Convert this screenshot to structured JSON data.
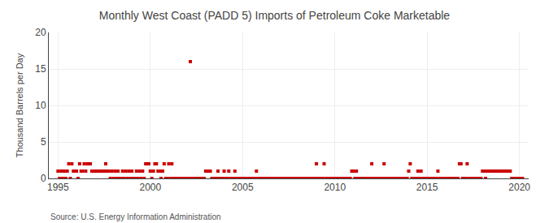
{
  "chart_data": {
    "type": "scatter",
    "title": "Monthly West Coast (PADD 5) Imports of Petroleum Coke Marketable",
    "ylabel": "Thousand Barrels per Day",
    "annotations": [
      "Source: U.S. Energy Information Administration"
    ],
    "color": "#cc0000",
    "marker": "square",
    "grid": true,
    "xlim": [
      1994.5,
      2020.5
    ],
    "xticks": [
      1995,
      2000,
      2005,
      2010,
      2015,
      2020
    ],
    "ylim": [
      0,
      20
    ],
    "yticks": [
      0,
      5,
      10,
      15,
      20
    ],
    "x": [
      1995.0,
      1995.083,
      1995.167,
      1995.25,
      1995.333,
      1995.417,
      1995.5,
      1995.583,
      1995.667,
      1995.75,
      1995.833,
      1995.917,
      1996.0,
      1996.083,
      1996.167,
      1996.25,
      1996.333,
      1996.417,
      1996.5,
      1996.583,
      1996.667,
      1996.75,
      1996.833,
      1996.917,
      1997.0,
      1997.083,
      1997.167,
      1997.25,
      1997.333,
      1997.417,
      1997.5,
      1997.583,
      1997.667,
      1997.75,
      1997.833,
      1997.917,
      1998.0,
      1998.083,
      1998.167,
      1998.25,
      1998.333,
      1998.417,
      1998.5,
      1998.583,
      1998.667,
      1998.75,
      1998.833,
      1998.917,
      1999.0,
      1999.083,
      1999.167,
      1999.25,
      1999.333,
      1999.417,
      1999.5,
      1999.583,
      1999.667,
      1999.75,
      1999.833,
      1999.917,
      2000.0,
      2000.083,
      2000.167,
      2000.25,
      2000.333,
      2000.417,
      2000.5,
      2000.583,
      2000.667,
      2000.75,
      2000.833,
      2000.917,
      2001.0,
      2001.083,
      2001.167,
      2001.25,
      2001.333,
      2001.417,
      2001.5,
      2001.583,
      2001.667,
      2001.75,
      2001.833,
      2001.917,
      2002.0,
      2002.083,
      2002.167,
      2002.25,
      2002.333,
      2002.417,
      2002.5,
      2002.583,
      2002.667,
      2002.75,
      2002.833,
      2002.917,
      2003.0,
      2003.083,
      2003.167,
      2003.25,
      2003.333,
      2003.417,
      2003.5,
      2003.583,
      2003.667,
      2003.75,
      2003.833,
      2003.917,
      2004.0,
      2004.083,
      2004.167,
      2004.25,
      2004.333,
      2004.417,
      2004.5,
      2004.583,
      2004.667,
      2004.75,
      2004.833,
      2004.917,
      2005.0,
      2005.083,
      2005.167,
      2005.25,
      2005.333,
      2005.417,
      2005.5,
      2005.583,
      2005.667,
      2005.75,
      2005.833,
      2005.917,
      2006.0,
      2006.083,
      2006.167,
      2006.25,
      2006.333,
      2006.417,
      2006.5,
      2006.583,
      2006.667,
      2006.75,
      2006.833,
      2006.917,
      2007.0,
      2007.083,
      2007.167,
      2007.25,
      2007.333,
      2007.417,
      2007.5,
      2007.583,
      2007.667,
      2007.75,
      2007.833,
      2007.917,
      2008.0,
      2008.083,
      2008.167,
      2008.25,
      2008.333,
      2008.417,
      2008.5,
      2008.583,
      2008.667,
      2008.75,
      2008.833,
      2008.917,
      2009.0,
      2009.083,
      2009.167,
      2009.25,
      2009.333,
      2009.417,
      2009.5,
      2009.583,
      2009.667,
      2009.75,
      2009.833,
      2009.917,
      2010.0,
      2010.083,
      2010.167,
      2010.25,
      2010.333,
      2010.417,
      2010.5,
      2010.583,
      2010.667,
      2010.75,
      2010.833,
      2010.917,
      2011.0,
      2011.083,
      2011.167,
      2011.25,
      2011.333,
      2011.417,
      2011.5,
      2011.583,
      2011.667,
      2011.75,
      2011.833,
      2011.917,
      2012.0,
      2012.083,
      2012.167,
      2012.25,
      2012.333,
      2012.417,
      2012.5,
      2012.583,
      2012.667,
      2012.75,
      2012.833,
      2012.917,
      2013.0,
      2013.083,
      2013.167,
      2013.25,
      2013.333,
      2013.417,
      2013.5,
      2013.583,
      2013.667,
      2013.75,
      2013.833,
      2013.917,
      2014.0,
      2014.083,
      2014.167,
      2014.25,
      2014.333,
      2014.417,
      2014.5,
      2014.583,
      2014.667,
      2014.75,
      2014.833,
      2014.917,
      2015.0,
      2015.083,
      2015.167,
      2015.25,
      2015.333,
      2015.417,
      2015.5,
      2015.583,
      2015.667,
      2015.75,
      2015.833,
      2015.917,
      2016.0,
      2016.083,
      2016.167,
      2016.25,
      2016.333,
      2016.417,
      2016.5,
      2016.583,
      2016.667,
      2016.75,
      2016.833,
      2016.917,
      2017.0,
      2017.083,
      2017.167,
      2017.25,
      2017.333,
      2017.417,
      2017.5,
      2017.583,
      2017.667,
      2017.75,
      2017.833,
      2017.917,
      2018.0,
      2018.083,
      2018.167,
      2018.25,
      2018.333,
      2018.417,
      2018.5,
      2018.583,
      2018.667,
      2018.75,
      2018.833,
      2018.917,
      2019.0,
      2019.083,
      2019.167,
      2019.25,
      2019.333,
      2019.417,
      2019.5,
      2019.583,
      2019.667,
      2019.75,
      2019.833,
      2019.917,
      2020.0,
      2020.083,
      2020.167
    ],
    "values": [
      1.0,
      0.0,
      1.0,
      0.0,
      1.0,
      0.0,
      1.0,
      2.0,
      0.0,
      2.0,
      1.0,
      1.0,
      1.0,
      0.0,
      2.0,
      1.0,
      1.0,
      2.0,
      1.0,
      2.0,
      2.0,
      2.0,
      1.0,
      1.0,
      1.0,
      1.0,
      1.0,
      1.0,
      1.0,
      1.0,
      1.0,
      2.0,
      1.0,
      1.0,
      0.0,
      1.0,
      0.0,
      1.0,
      0.0,
      1.0,
      0.0,
      0.0,
      1.0,
      0.0,
      1.0,
      0.0,
      1.0,
      0.0,
      1.0,
      0.0,
      0.0,
      1.0,
      0.0,
      1.0,
      0.0,
      1.0,
      0.0,
      2.0,
      2.0,
      2.0,
      1.0,
      0.0,
      1.0,
      2.0,
      2.0,
      1.0,
      1.0,
      0.0,
      1.0,
      2.0,
      0.0,
      0.0,
      2.0,
      0.0,
      2.0,
      0.0,
      0.0,
      0.0,
      0.0,
      0.0,
      0.0,
      0.0,
      0.0,
      0.0,
      0.0,
      0.0,
      16.0,
      0.0,
      0.0,
      0.0,
      0.0,
      0.0,
      0.0,
      0.0,
      0.0,
      0.0,
      1.0,
      1.0,
      1.0,
      1.0,
      0.0,
      0.0,
      0.0,
      0.0,
      1.0,
      0.0,
      0.0,
      0.0,
      1.0,
      0.0,
      0.0,
      1.0,
      0.0,
      0.0,
      0.0,
      1.0,
      0.0,
      0.0,
      0.0,
      0.0,
      0.0,
      0.0,
      0.0,
      0.0,
      0.0,
      0.0,
      0.0,
      0.0,
      0.0,
      1.0,
      0.0,
      0.0,
      0.0,
      0.0,
      0.0,
      0.0,
      0.0,
      0.0,
      0.0,
      0.0,
      0.0,
      0.0,
      0.0,
      0.0,
      0.0,
      0.0,
      0.0,
      0.0,
      0.0,
      0.0,
      0.0,
      0.0,
      0.0,
      0.0,
      0.0,
      0.0,
      0.0,
      0.0,
      0.0,
      0.0,
      0.0,
      0.0,
      0.0,
      0.0,
      0.0,
      0.0,
      0.0,
      0.0,
      2.0,
      0.0,
      0.0,
      0.0,
      0.0,
      2.0,
      0.0,
      0.0,
      0.0,
      0.0,
      0.0,
      0.0,
      0.0,
      0.0,
      0.0,
      0.0,
      0.0,
      0.0,
      0.0,
      0.0,
      0.0,
      0.0,
      0.0,
      1.0,
      1.0,
      0.0,
      1.0,
      0.0,
      0.0,
      0.0,
      0.0,
      0.0,
      0.0,
      0.0,
      0.0,
      0.0,
      2.0,
      0.0,
      0.0,
      0.0,
      0.0,
      0.0,
      0.0,
      0.0,
      2.0,
      0.0,
      0.0,
      0.0,
      0.0,
      0.0,
      0.0,
      0.0,
      0.0,
      0.0,
      0.0,
      0.0,
      0.0,
      0.0,
      0.0,
      0.0,
      1.0,
      2.0,
      0.0,
      0.0,
      0.0,
      0.0,
      1.0,
      0.0,
      1.0,
      0.0,
      0.0,
      0.0,
      0.0,
      0.0,
      0.0,
      0.0,
      0.0,
      0.0,
      0.0,
      1.0,
      0.0,
      0.0,
      0.0,
      0.0,
      0.0,
      0.0,
      0.0,
      0.0,
      0.0,
      0.0,
      0.0,
      0.0,
      0.0,
      2.0,
      2.0,
      0.0,
      0.0,
      0.0,
      2.0,
      0.0,
      0.0,
      0.0,
      0.0,
      0.0,
      0.0,
      0.0,
      0.0,
      0.0,
      1.0,
      1.0,
      0.0,
      1.0,
      1.0,
      1.0,
      1.0,
      1.0,
      1.0,
      1.0,
      1.0,
      1.0,
      1.0,
      1.0,
      1.0,
      1.0,
      1.0,
      1.0,
      1.0,
      0.0,
      0.0,
      0.0,
      0.0,
      0.0,
      0.0,
      0.0,
      0.0
    ]
  }
}
